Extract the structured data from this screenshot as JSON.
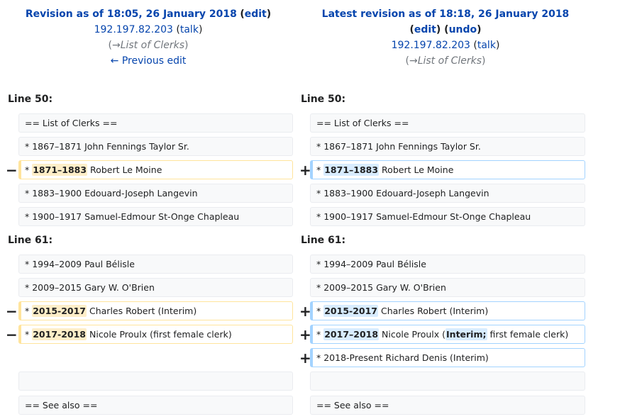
{
  "left_header": {
    "title": "Revision as of 18:05, 26 January 2018",
    "edit": "edit",
    "user": "192.197.82.203",
    "talk": "talk",
    "comment": "List of Clerks",
    "prev": "← Previous edit"
  },
  "right_header": {
    "title": "Latest revision as of 18:18, 26 January 2018",
    "edit": "edit",
    "undo": "undo",
    "user": "192.197.82.203",
    "talk": "talk",
    "comment": "List of Clerks"
  },
  "line_labels": {
    "a_left": "Line 50:",
    "a_right": "Line 50:",
    "b_left": "Line 61:",
    "b_right": "Line 61:"
  },
  "rows": {
    "r1": "== List of Clerks ==",
    "r2": "* 1867–1871 John Fennings Taylor Sr.",
    "r3_pre": "* ",
    "r3_hl": "1871–1883",
    "r3_post": " Robert Le Moine",
    "r4": "* 1883–1900 Edouard-Joseph Langevin",
    "r5": "* 1900–1917 Samuel-Edmour St-Onge Chapleau",
    "r6": "* 1994–2009 Paul Bélisle",
    "r7": "* 2009–2015 Gary W. O'Brien",
    "r8_pre": "* ",
    "r8_hl": "2015-2017",
    "r8_post": " Charles Robert (Interim)",
    "r9_pre": "* ",
    "r9_hl": "2017-2018",
    "r9_post": " Nicole Proulx (first female clerk)",
    "r9_right_hl": "2017–2018",
    "r9_right_mid": " Nicole Proulx (",
    "r9_right_hl2": "Interim;",
    "r9_right_post": " first female clerk)",
    "r10": "* 2018-Present Richard Denis (Interim)",
    "r12": "== See also =="
  },
  "markers": {
    "minus": "−",
    "plus": "+"
  },
  "colors": {
    "link": "#0645ad",
    "deleted": "#ffe49c",
    "added": "#a3d3ff"
  }
}
